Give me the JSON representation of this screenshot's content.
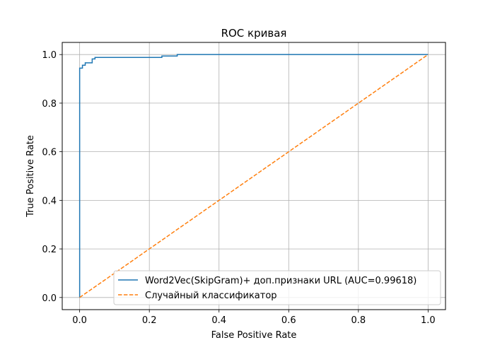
{
  "chart_data": {
    "type": "line",
    "title": "ROC кривая",
    "xlabel": "False Positive Rate",
    "ylabel": "True Positive Rate",
    "xlim": [
      -0.05,
      1.05
    ],
    "ylim": [
      -0.05,
      1.05
    ],
    "xticks": [
      0.0,
      0.2,
      0.4,
      0.6,
      0.8,
      1.0
    ],
    "xtick_labels": [
      "0.0",
      "0.2",
      "0.4",
      "0.6",
      "0.8",
      "1.0"
    ],
    "yticks": [
      0.0,
      0.2,
      0.4,
      0.6,
      0.8,
      1.0
    ],
    "ytick_labels": [
      "0.0",
      "0.2",
      "0.4",
      "0.6",
      "0.8",
      "1.0"
    ],
    "grid": true,
    "legend_position": "lower-right",
    "series": [
      {
        "name": "Word2Vec(SkipGram)+ доп.признаки URL (AUC=0.99618)",
        "style": "solid",
        "color": "#1f77b4",
        "x": [
          0.0,
          0.0,
          0.008,
          0.008,
          0.016,
          0.016,
          0.036,
          0.036,
          0.044,
          0.044,
          0.236,
          0.236,
          0.28,
          0.28,
          1.0
        ],
        "y": [
          0.0,
          0.944,
          0.944,
          0.956,
          0.956,
          0.966,
          0.966,
          0.982,
          0.982,
          0.988,
          0.988,
          0.994,
          0.994,
          1.0,
          1.0
        ]
      },
      {
        "name": "Случайный классификатор",
        "style": "dashed",
        "color": "#ff7f0e",
        "x": [
          0.0,
          1.0
        ],
        "y": [
          0.0,
          1.0
        ]
      }
    ]
  }
}
